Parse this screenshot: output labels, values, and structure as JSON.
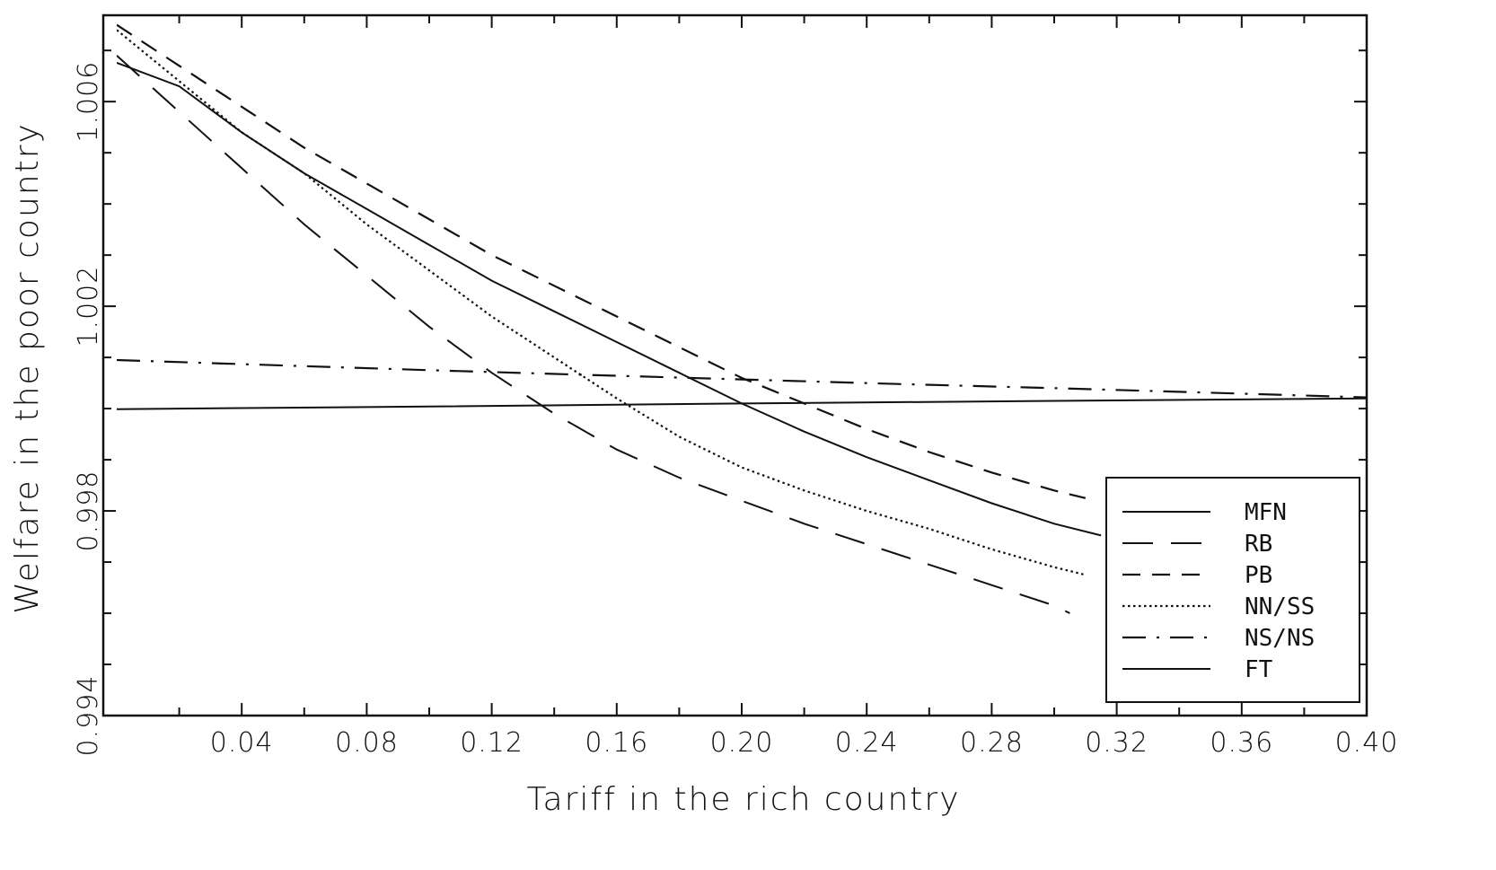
{
  "chart_data": {
    "type": "line",
    "title": "",
    "xlabel": "Tariff in the rich country",
    "ylabel": "Welfare in the poor country",
    "xlim": [
      0.0,
      0.4
    ],
    "ylim": [
      0.994,
      1.0076
    ],
    "x_ticks": [
      0.04,
      0.08,
      0.12,
      0.16,
      0.2,
      0.24,
      0.28,
      0.32,
      0.36,
      0.4
    ],
    "x_tick_labels": [
      "0.04",
      "0.08",
      "0.12",
      "0.16",
      "0.20",
      "0.24",
      "0.28",
      "0.32",
      "0.36",
      "0.40"
    ],
    "y_ticks": [
      0.994,
      0.998,
      1.002,
      1.006
    ],
    "y_tick_labels": [
      "0.994",
      "0.998",
      "1.002",
      "1.006"
    ],
    "grid": false,
    "legend_position": "bottom-right",
    "series": [
      {
        "name": "MFN",
        "style": "solid",
        "x": [
          0.0,
          0.02,
          0.04,
          0.06,
          0.08,
          0.1,
          0.12,
          0.14,
          0.16,
          0.18,
          0.2,
          0.22,
          0.24,
          0.26,
          0.28,
          0.3,
          0.315
        ],
        "y": [
          1.00676,
          1.0063,
          1.0054,
          1.0046,
          1.0039,
          1.0032,
          1.0025,
          1.0019,
          1.0013,
          1.0007,
          1.0001,
          0.99955,
          0.99905,
          0.9986,
          0.99815,
          0.99775,
          0.99752
        ]
      },
      {
        "name": "RB",
        "style": "long-dash",
        "x": [
          0.0,
          0.02,
          0.04,
          0.06,
          0.08,
          0.1,
          0.12,
          0.14,
          0.16,
          0.18,
          0.2,
          0.22,
          0.24,
          0.26,
          0.28,
          0.3,
          0.305
        ],
        "y": [
          1.0069,
          1.0058,
          1.0047,
          1.0036,
          1.0026,
          1.0016,
          1.0007,
          0.9999,
          0.9992,
          0.99865,
          0.9982,
          0.99775,
          0.99735,
          0.99695,
          0.99655,
          0.99615,
          0.996
        ]
      },
      {
        "name": "PB",
        "style": "short-dash",
        "x": [
          0.0,
          0.02,
          0.04,
          0.06,
          0.08,
          0.1,
          0.12,
          0.14,
          0.16,
          0.18,
          0.2,
          0.22,
          0.24,
          0.26,
          0.28,
          0.3,
          0.31
        ],
        "y": [
          1.0075,
          1.0067,
          1.0059,
          1.0051,
          1.0044,
          1.0037,
          1.003,
          1.0024,
          1.0018,
          1.0012,
          1.0006,
          1.0001,
          0.9996,
          0.99915,
          0.99875,
          0.9984,
          0.99825
        ]
      },
      {
        "name": "NN/SS",
        "style": "dotted",
        "x": [
          0.0,
          0.02,
          0.04,
          0.06,
          0.08,
          0.1,
          0.12,
          0.14,
          0.16,
          0.18,
          0.2,
          0.22,
          0.24,
          0.26,
          0.28,
          0.3,
          0.31
        ],
        "y": [
          1.0074,
          1.0064,
          1.0054,
          1.0046,
          1.0036,
          1.0027,
          1.0018,
          1.001,
          1.0002,
          0.99945,
          0.99885,
          0.9984,
          0.998,
          0.99765,
          0.99725,
          0.9969,
          0.99675
        ]
      },
      {
        "name": "NS/NS",
        "style": "dash-dot",
        "x": [
          0.0,
          0.05,
          0.1,
          0.15,
          0.2,
          0.25,
          0.3,
          0.35,
          0.4
        ],
        "y": [
          1.00095,
          1.00085,
          1.00075,
          1.00066,
          1.00057,
          1.00048,
          1.0004,
          1.00031,
          1.00022
        ]
      },
      {
        "name": "FT",
        "style": "solid",
        "x": [
          0.0,
          0.1,
          0.2,
          0.3,
          0.4
        ],
        "y": [
          0.99999,
          1.00004,
          1.0001,
          1.00015,
          1.0002
        ]
      }
    ]
  }
}
